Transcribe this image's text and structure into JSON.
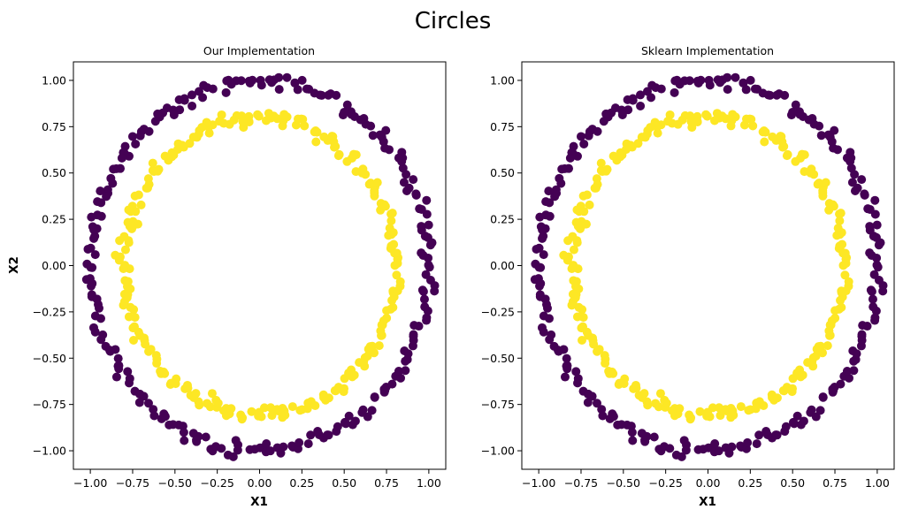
{
  "figure": {
    "title": "Circles"
  },
  "colors": {
    "outer": "#440154",
    "inner": "#fde725"
  },
  "chart_data": [
    {
      "type": "scatter",
      "title": "Our Implementation",
      "xlabel": "X1",
      "ylabel": "X2",
      "xlim": [
        -1.1,
        1.1
      ],
      "ylim": [
        -1.1,
        1.1
      ],
      "xticks": [
        -1.0,
        -0.75,
        -0.5,
        -0.25,
        0.0,
        0.25,
        0.5,
        0.75,
        1.0
      ],
      "yticks": [
        -1.0,
        -0.75,
        -0.5,
        -0.25,
        0.0,
        0.25,
        0.5,
        0.75,
        1.0
      ],
      "xtick_labels": [
        "−1.00",
        "−0.75",
        "−0.50",
        "−0.25",
        "0.00",
        "0.25",
        "0.50",
        "0.75",
        "1.00"
      ],
      "ytick_labels": [
        "−1.00",
        "−0.75",
        "−0.50",
        "−0.25",
        "0.00",
        "0.25",
        "0.50",
        "0.75",
        "1.00"
      ],
      "grid": false,
      "series": [
        {
          "cluster": 0,
          "radius": 1.0,
          "noise": 0.02,
          "count": 250
        },
        {
          "cluster": 1,
          "radius": 0.8,
          "noise": 0.02,
          "count": 250
        }
      ]
    },
    {
      "type": "scatter",
      "title": "Sklearn Implementation",
      "xlabel": "X1",
      "ylabel": "",
      "xlim": [
        -1.1,
        1.1
      ],
      "ylim": [
        -1.1,
        1.1
      ],
      "xticks": [
        -1.0,
        -0.75,
        -0.5,
        -0.25,
        0.0,
        0.25,
        0.5,
        0.75,
        1.0
      ],
      "yticks": [
        -1.0,
        -0.75,
        -0.5,
        -0.25,
        0.0,
        0.25,
        0.5,
        0.75,
        1.0
      ],
      "xtick_labels": [
        "−1.00",
        "−0.75",
        "−0.50",
        "−0.25",
        "0.00",
        "0.25",
        "0.50",
        "0.75",
        "1.00"
      ],
      "ytick_labels": [
        "−1.00",
        "−0.75",
        "−0.50",
        "−0.25",
        "0.00",
        "0.25",
        "0.50",
        "0.75",
        "1.00"
      ],
      "grid": false,
      "series": [
        {
          "cluster": 0,
          "radius": 1.0,
          "noise": 0.02,
          "count": 250
        },
        {
          "cluster": 1,
          "radius": 0.8,
          "noise": 0.02,
          "count": 250
        }
      ]
    }
  ]
}
